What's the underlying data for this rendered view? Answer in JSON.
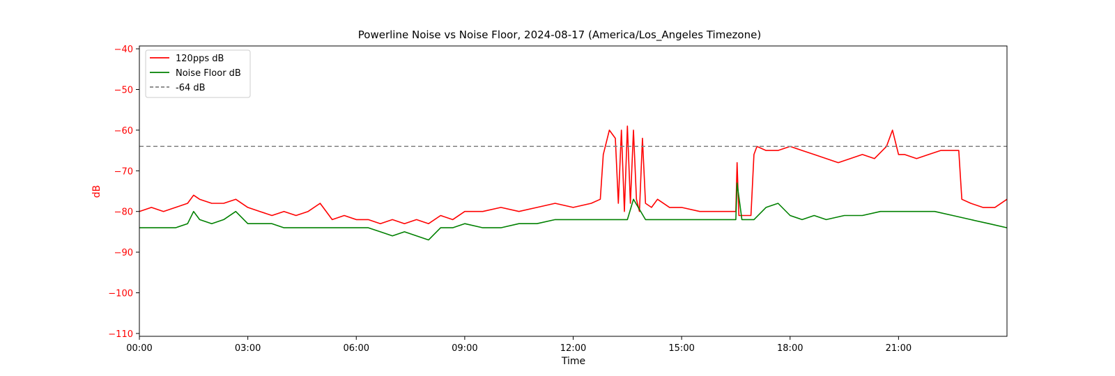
{
  "chart_data": {
    "type": "line",
    "title": "Powerline Noise vs Noise Floor, 2024-08-17 (America/Los_Angeles Timezone)",
    "xlabel": "Time",
    "ylabel": "dB",
    "xlim": [
      "00:00",
      "24:00"
    ],
    "ylim": [
      -110.7,
      -39.3
    ],
    "x_ticks": [
      "00:00",
      "03:00",
      "06:00",
      "09:00",
      "12:00",
      "15:00",
      "18:00",
      "21:00"
    ],
    "y_ticks": [
      -40,
      -50,
      -60,
      -70,
      -80,
      -90,
      -100,
      -110
    ],
    "y_tick_labels": [
      "−40",
      "−50",
      "−60",
      "−70",
      "−80",
      "−90",
      "−100",
      "−110"
    ],
    "y_tick_color": "#ff0000",
    "grid": false,
    "legend_position": "top-left",
    "series": [
      {
        "name": "120pps dB",
        "color": "#ff0000",
        "style": "solid",
        "x": [
          "00:00",
          "00:20",
          "00:40",
          "01:00",
          "01:20",
          "01:30",
          "01:40",
          "02:00",
          "02:20",
          "02:40",
          "03:00",
          "03:20",
          "03:40",
          "04:00",
          "04:20",
          "04:40",
          "05:00",
          "05:20",
          "05:40",
          "06:00",
          "06:20",
          "06:40",
          "07:00",
          "07:20",
          "07:40",
          "08:00",
          "08:20",
          "08:40",
          "09:00",
          "09:30",
          "10:00",
          "10:30",
          "11:00",
          "11:30",
          "12:00",
          "12:30",
          "12:45",
          "12:50",
          "13:00",
          "13:10",
          "13:15",
          "13:20",
          "13:25",
          "13:30",
          "13:35",
          "13:40",
          "13:45",
          "13:50",
          "13:55",
          "14:00",
          "14:10",
          "14:20",
          "14:40",
          "15:00",
          "15:30",
          "16:00",
          "16:20",
          "16:30",
          "16:32",
          "16:35",
          "16:40",
          "16:55",
          "17:00",
          "17:05",
          "17:20",
          "17:40",
          "18:00",
          "18:20",
          "18:40",
          "19:00",
          "19:20",
          "19:40",
          "20:00",
          "20:20",
          "20:40",
          "20:50",
          "21:00",
          "21:10",
          "21:30",
          "21:50",
          "22:10",
          "22:30",
          "22:40",
          "22:45",
          "23:00",
          "23:20",
          "23:40",
          "24:00"
        ],
        "values": [
          -80,
          -79,
          -80,
          -79,
          -78,
          -76,
          -77,
          -78,
          -78,
          -77,
          -79,
          -80,
          -81,
          -80,
          -81,
          -80,
          -78,
          -82,
          -81,
          -82,
          -82,
          -83,
          -82,
          -83,
          -82,
          -83,
          -81,
          -82,
          -80,
          -80,
          -79,
          -80,
          -79,
          -78,
          -79,
          -78,
          -77,
          -66,
          -60,
          -62,
          -78,
          -60,
          -80,
          -59,
          -78,
          -60,
          -77,
          -80,
          -62,
          -78,
          -79,
          -77,
          -79,
          -79,
          -80,
          -80,
          -80,
          -80,
          -68,
          -81,
          -81,
          -81,
          -66,
          -64,
          -65,
          -65,
          -64,
          -65,
          -66,
          -67,
          -68,
          -67,
          -66,
          -67,
          -64,
          -60,
          -66,
          -66,
          -67,
          -66,
          -65,
          -65,
          -65,
          -77,
          -78,
          -79,
          -79,
          -77
        ]
      },
      {
        "name": "Noise Floor dB",
        "color": "#008000",
        "style": "solid",
        "x": [
          "00:00",
          "00:20",
          "00:40",
          "01:00",
          "01:20",
          "01:30",
          "01:40",
          "02:00",
          "02:20",
          "02:40",
          "03:00",
          "03:20",
          "03:40",
          "04:00",
          "04:20",
          "04:40",
          "05:00",
          "05:20",
          "05:40",
          "06:00",
          "06:20",
          "06:40",
          "07:00",
          "07:20",
          "07:40",
          "08:00",
          "08:20",
          "08:40",
          "09:00",
          "09:30",
          "10:00",
          "10:30",
          "11:00",
          "11:30",
          "12:00",
          "12:30",
          "13:00",
          "13:30",
          "13:40",
          "14:00",
          "14:30",
          "15:00",
          "15:30",
          "16:00",
          "16:30",
          "16:32",
          "16:40",
          "17:00",
          "17:20",
          "17:40",
          "18:00",
          "18:20",
          "18:40",
          "19:00",
          "19:30",
          "20:00",
          "20:30",
          "21:00",
          "21:30",
          "22:00",
          "22:30",
          "23:00",
          "23:30",
          "24:00"
        ],
        "values": [
          -84,
          -84,
          -84,
          -84,
          -83,
          -80,
          -82,
          -83,
          -82,
          -80,
          -83,
          -83,
          -83,
          -84,
          -84,
          -84,
          -84,
          -84,
          -84,
          -84,
          -84,
          -85,
          -86,
          -85,
          -86,
          -87,
          -84,
          -84,
          -83,
          -84,
          -84,
          -83,
          -83,
          -82,
          -82,
          -82,
          -82,
          -82,
          -77,
          -82,
          -82,
          -82,
          -82,
          -82,
          -82,
          -73,
          -82,
          -82,
          -79,
          -78,
          -81,
          -82,
          -81,
          -82,
          -81,
          -81,
          -80,
          -80,
          -80,
          -80,
          -81,
          -82,
          -83,
          -84
        ]
      },
      {
        "name": "-64 dB",
        "color": "#808080",
        "style": "dashed",
        "x": [
          "00:00",
          "24:00"
        ],
        "values": [
          -64,
          -64
        ]
      }
    ]
  }
}
